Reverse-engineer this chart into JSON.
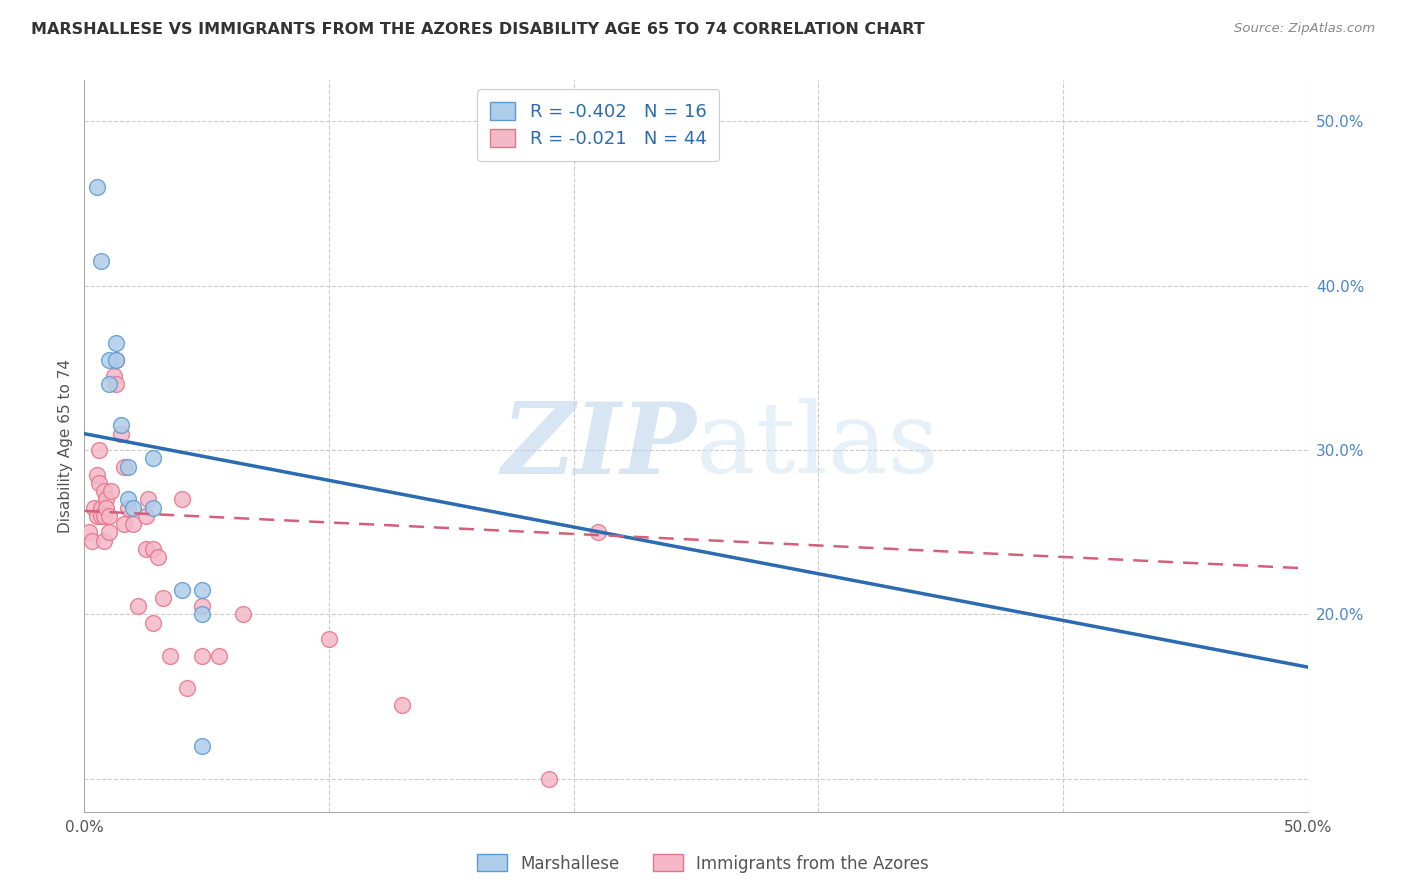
{
  "title": "MARSHALLESE VS IMMIGRANTS FROM THE AZORES DISABILITY AGE 65 TO 74 CORRELATION CHART",
  "source": "Source: ZipAtlas.com",
  "ylabel": "Disability Age 65 to 74",
  "xlim": [
    0.0,
    0.5
  ],
  "ylim": [
    0.08,
    0.525
  ],
  "legend_r_blue": "-0.402",
  "legend_n_blue": "16",
  "legend_r_pink": "-0.021",
  "legend_n_pink": "44",
  "blue_color": "#aecde8",
  "pink_color": "#f4b8c8",
  "blue_edge_color": "#5b9bd5",
  "pink_edge_color": "#e8748a",
  "blue_line_color": "#2b6cb0",
  "pink_line_color": "#d45f7a",
  "blue_scatter_x": [
    0.005,
    0.007,
    0.01,
    0.01,
    0.013,
    0.013,
    0.015,
    0.018,
    0.018,
    0.02,
    0.028,
    0.028,
    0.04,
    0.048,
    0.048,
    0.048
  ],
  "blue_scatter_y": [
    0.46,
    0.415,
    0.355,
    0.34,
    0.365,
    0.355,
    0.315,
    0.29,
    0.27,
    0.265,
    0.295,
    0.265,
    0.215,
    0.215,
    0.2,
    0.12
  ],
  "pink_scatter_x": [
    0.002,
    0.003,
    0.004,
    0.005,
    0.005,
    0.006,
    0.006,
    0.007,
    0.007,
    0.008,
    0.008,
    0.008,
    0.009,
    0.009,
    0.01,
    0.01,
    0.011,
    0.012,
    0.013,
    0.013,
    0.015,
    0.016,
    0.016,
    0.018,
    0.02,
    0.022,
    0.025,
    0.025,
    0.026,
    0.028,
    0.028,
    0.03,
    0.032,
    0.035,
    0.04,
    0.042,
    0.048,
    0.048,
    0.055,
    0.065,
    0.1,
    0.13,
    0.19,
    0.21
  ],
  "pink_scatter_y": [
    0.25,
    0.245,
    0.265,
    0.285,
    0.26,
    0.3,
    0.28,
    0.265,
    0.26,
    0.275,
    0.26,
    0.245,
    0.27,
    0.265,
    0.26,
    0.25,
    0.275,
    0.345,
    0.355,
    0.34,
    0.31,
    0.29,
    0.255,
    0.265,
    0.255,
    0.205,
    0.26,
    0.24,
    0.27,
    0.195,
    0.24,
    0.235,
    0.21,
    0.175,
    0.27,
    0.155,
    0.175,
    0.205,
    0.175,
    0.2,
    0.185,
    0.145,
    0.1,
    0.25
  ],
  "blue_trend_x": [
    0.0,
    0.5
  ],
  "blue_trend_y": [
    0.31,
    0.168
  ],
  "pink_trend_x": [
    0.0,
    0.5
  ],
  "pink_trend_y": [
    0.263,
    0.228
  ],
  "watermark_zip": "ZIP",
  "watermark_atlas": "atlas",
  "background_color": "#ffffff",
  "grid_color": "#cccccc",
  "ytick_vals": [
    0.2,
    0.3,
    0.4,
    0.5
  ],
  "ytick_labels": [
    "20.0%",
    "30.0%",
    "40.0%",
    "50.0%"
  ],
  "xtick_vals": [
    0.0,
    0.1,
    0.2,
    0.3,
    0.4,
    0.5
  ],
  "xtick_labels": [
    "0.0%",
    "",
    "",
    "",
    "",
    "50.0%"
  ]
}
